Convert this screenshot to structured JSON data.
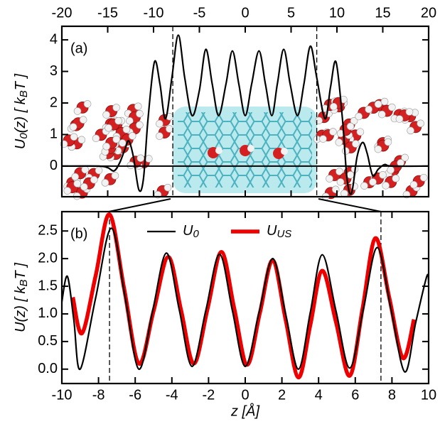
{
  "chart_data": [
    {
      "type": "line",
      "label": "(a)",
      "ylabel": [
        "U",
        "0",
        "(z)  [ k",
        "B",
        "T ]"
      ],
      "x": [
        -20,
        -16,
        -15,
        -14.3,
        -13.7,
        -13.1,
        -12.7,
        -12.2,
        -11.6,
        -11.1,
        -10.6,
        -9.9,
        -9.3,
        -8.7,
        -8.0,
        -7.3,
        -6.6,
        -5.8,
        -5.0,
        -4.3,
        -3.6,
        -2.9,
        -2.1,
        -1.4,
        -0.7,
        0,
        0.7,
        1.5,
        2.2,
        2.9,
        3.5,
        4.2,
        4.9,
        5.7,
        6.4,
        7.1,
        7.8,
        8.7,
        9.3,
        9.9,
        10.6,
        11.1,
        11.6,
        12.2,
        12.8,
        13.3,
        13.9,
        14.5,
        15.2,
        16,
        20
      ],
      "series": [
        {
          "color": "#000000",
          "values": [
            0,
            0,
            -0.05,
            -0.15,
            0.1,
            0.55,
            0.8,
            0.3,
            -0.75,
            -0.4,
            1.5,
            3.3,
            2.6,
            1.5,
            2.8,
            4.15,
            2.8,
            1.6,
            2.4,
            3.7,
            2.6,
            1.6,
            2.6,
            3.65,
            2.6,
            1.6,
            2.6,
            3.65,
            2.6,
            1.6,
            2.6,
            3.7,
            2.6,
            1.6,
            2.6,
            3.8,
            2.8,
            1.5,
            2.5,
            3.3,
            1.5,
            -0.4,
            -0.85,
            0.3,
            0.75,
            0.4,
            -0.3,
            -0.1,
            0.05,
            0,
            0
          ]
        }
      ],
      "xlim": [
        -20,
        20
      ],
      "xticks": [
        -20,
        -15,
        -10,
        -5,
        0,
        5,
        10,
        15,
        20
      ],
      "xaxis": "top",
      "ylim": [
        -0.97,
        4.43
      ],
      "yticks": [
        0,
        1,
        2,
        3,
        4
      ],
      "zero_line": true,
      "vlines": [
        -7.9,
        7.8
      ]
    },
    {
      "type": "line",
      "label": "(b)",
      "ylabel": [
        "U(z)  [ k",
        "B",
        "T ]"
      ],
      "xlabel": "z [Å]",
      "series": [
        {
          "name": [
            "U",
            "0"
          ],
          "color": "#000000",
          "x": [
            -10,
            -9.7,
            -9.35,
            -9.0,
            -8.15,
            -7.3,
            -6.55,
            -5.8,
            -5.05,
            -4.3,
            -3.6,
            -2.9,
            -2.15,
            -1.4,
            -0.7,
            0,
            0.75,
            1.5,
            2.2,
            2.9,
            3.55,
            4.2,
            4.95,
            5.7,
            6.45,
            7.2,
            7.95,
            8.7,
            9.3,
            9.9,
            10
          ],
          "values": [
            1.22,
            1.68,
            0.9,
            0.0,
            1.3,
            2.55,
            1.3,
            0.0,
            1.05,
            2.1,
            1.08,
            0.05,
            1.06,
            2.08,
            1.06,
            0.05,
            1.02,
            2.0,
            1.0,
            0.0,
            1.03,
            2.07,
            1.05,
            0.02,
            1.1,
            2.2,
            1.08,
            -0.05,
            0.85,
            1.68,
            1.55
          ]
        },
        {
          "name": [
            "U",
            "US"
          ],
          "color": "#ee0000",
          "x": [
            -9.4,
            -8.9,
            -8.15,
            -7.4,
            -6.6,
            -5.8,
            -5.0,
            -4.2,
            -3.5,
            -2.8,
            -2.05,
            -1.3,
            -0.6,
            0.1,
            0.8,
            1.5,
            2.2,
            2.9,
            3.55,
            4.2,
            4.95,
            5.7,
            6.4,
            7.1,
            7.85,
            8.6,
            9.2
          ],
          "values": [
            1.3,
            0.65,
            1.7,
            2.8,
            1.45,
            0.1,
            1.05,
            2.03,
            1.07,
            0.1,
            1.1,
            2.12,
            1.1,
            0.08,
            1.02,
            1.97,
            0.9,
            -0.15,
            0.8,
            1.78,
            0.85,
            -0.12,
            1.1,
            2.37,
            1.3,
            0.2,
            0.9
          ]
        }
      ],
      "xlim": [
        -10,
        10
      ],
      "xticks": [
        -10,
        -8,
        -6,
        -4,
        -2,
        0,
        2,
        4,
        6,
        8,
        10
      ],
      "xaxis": "bottom",
      "ylim": [
        -0.26,
        2.85
      ],
      "yticks": [
        {
          "value": 0,
          "label": "0.0"
        },
        {
          "value": 0.5,
          "label": "0.5"
        },
        {
          "value": 1,
          "label": "1.0"
        },
        {
          "value": 1.5,
          "label": "1.5"
        },
        {
          "value": 2,
          "label": "2.0"
        },
        {
          "value": 2.5,
          "label": "2.5"
        }
      ],
      "vlines": [
        -7.4,
        7.4
      ],
      "legend": "top"
    }
  ]
}
